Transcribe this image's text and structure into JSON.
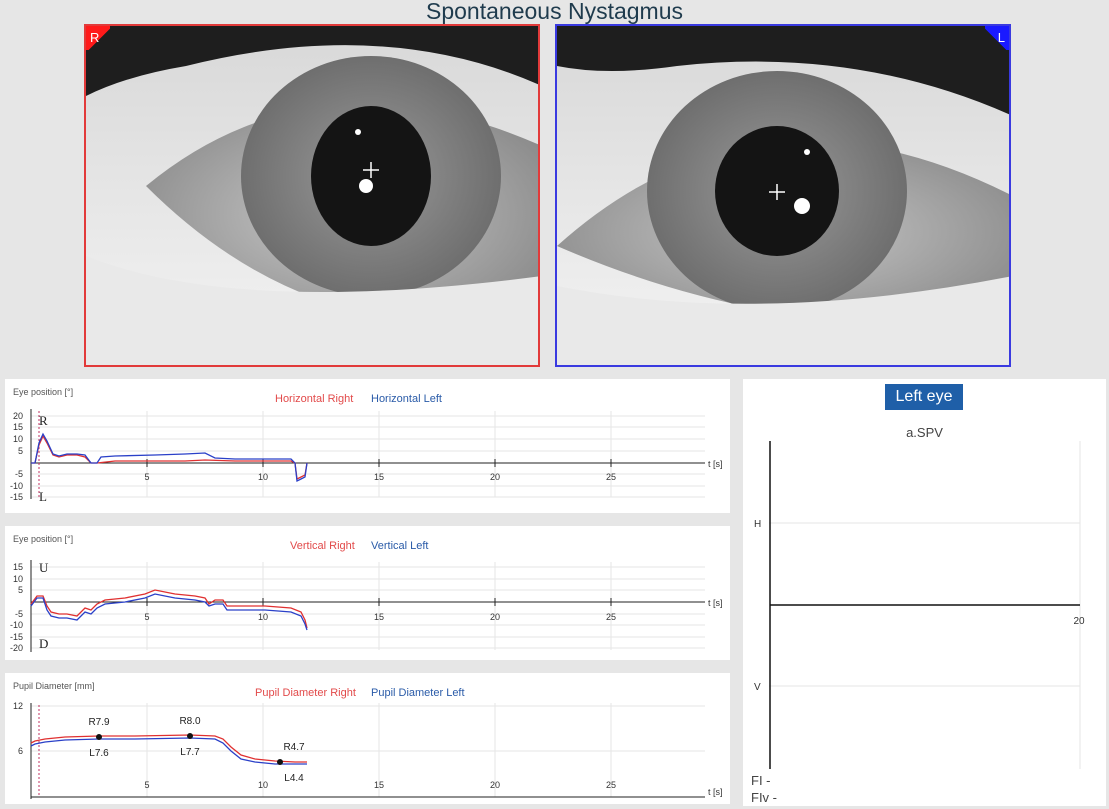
{
  "header": {
    "title": "Spontaneous Nystagmus"
  },
  "cameras": {
    "right_label": "R",
    "left_label": "L",
    "right_color": "#e23a3a",
    "left_color": "#3a3ae0"
  },
  "horizontal": {
    "axis_title": "Eye position [°]",
    "legend_right": "Horizontal Right",
    "legend_left": "Horizontal Left",
    "top_letter": "R",
    "bottom_letter": "L",
    "t_label": "t [s]",
    "y_ticks": [
      "20",
      "15",
      "10",
      "5",
      "-5",
      "-10",
      "-15"
    ],
    "x_ticks": [
      "5",
      "10",
      "15",
      "20",
      "25"
    ]
  },
  "vertical": {
    "axis_title": "Eye position [°]",
    "legend_right": "Vertical Right",
    "legend_left": "Vertical Left",
    "top_letter": "U",
    "bottom_letter": "D",
    "t_label": "t [s]",
    "y_ticks": [
      "15",
      "10",
      "5",
      "-5",
      "-10",
      "-15",
      "-20"
    ],
    "x_ticks": [
      "5",
      "10",
      "15",
      "20",
      "25"
    ]
  },
  "pupil": {
    "axis_title": "Pupil Diameter [mm]",
    "legend_right": "Pupil Diameter Right",
    "legend_left": "Pupil Diameter Left",
    "t_label": "t [s]",
    "y_ticks": [
      "12",
      "6"
    ],
    "x_ticks": [
      "5",
      "10",
      "15",
      "20",
      "25"
    ],
    "markers": [
      {
        "top": "R7.9",
        "bottom": "L7.6"
      },
      {
        "top": "R8.0",
        "bottom": "L7.7"
      },
      {
        "top": "R4.7",
        "bottom": "L4.4"
      }
    ]
  },
  "side_panel": {
    "button": "Left eye",
    "chart_title": "a.SPV",
    "h_label": "H",
    "v_label": "V",
    "x_tick": "20",
    "fi": "FI -",
    "fiv": "FIv -"
  }
}
